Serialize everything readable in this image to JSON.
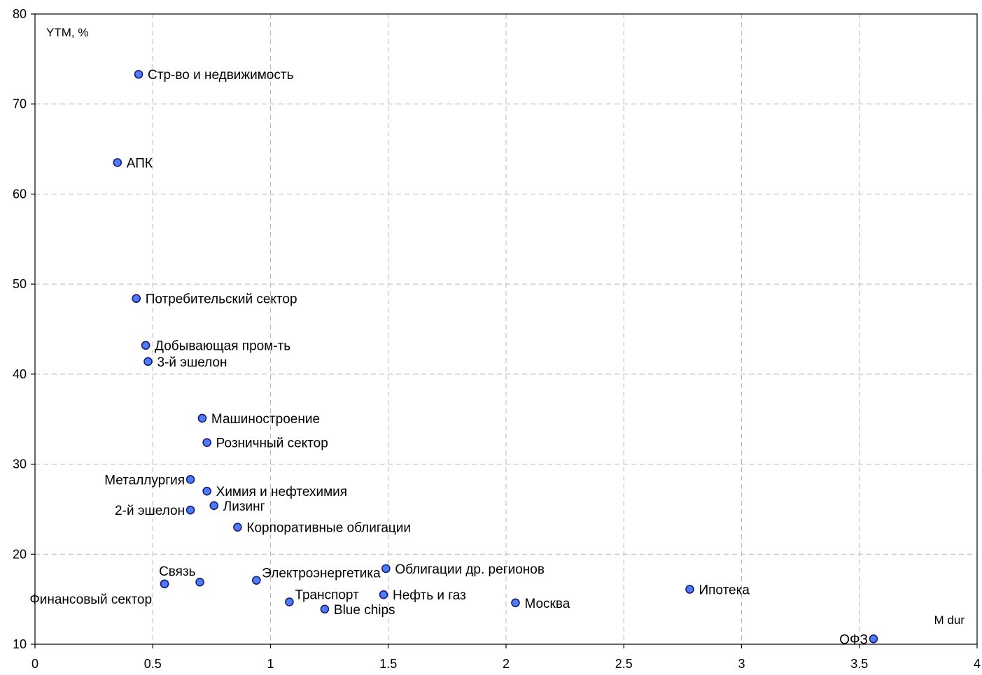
{
  "chart_data": {
    "type": "scatter",
    "title": "",
    "ylabel": "YTM, %",
    "xlabel": "M dur",
    "xlim": [
      0,
      4
    ],
    "ylim": [
      10,
      80
    ],
    "x_ticks": [
      "0",
      "0.5",
      "1",
      "1.5",
      "2",
      "2.5",
      "3",
      "3.5",
      "4"
    ],
    "y_ticks": [
      "10",
      "20",
      "30",
      "40",
      "50",
      "60",
      "70",
      "80"
    ],
    "grid": true,
    "marker_color": "#4d7cff",
    "marker_edge_color": "#1a1a6e",
    "points": [
      {
        "label": "Стр-во и недвижимость",
        "x": 0.44,
        "y": 73.3,
        "label_side": "right"
      },
      {
        "label": "АПК",
        "x": 0.35,
        "y": 63.5,
        "label_side": "right"
      },
      {
        "label": "Потребительский сектор",
        "x": 0.43,
        "y": 48.4,
        "label_side": "right"
      },
      {
        "label": "Добывающая пром-ть",
        "x": 0.47,
        "y": 43.2,
        "label_side": "right"
      },
      {
        "label": "3-й эшелон",
        "x": 0.48,
        "y": 41.4,
        "label_side": "right"
      },
      {
        "label": "Машиностроение",
        "x": 0.71,
        "y": 35.1,
        "label_side": "right"
      },
      {
        "label": "Розничный сектор",
        "x": 0.73,
        "y": 32.4,
        "label_side": "right"
      },
      {
        "label": "Металлургия",
        "x": 0.66,
        "y": 28.3,
        "label_side": "left"
      },
      {
        "label": "Химия и нефтехимия",
        "x": 0.73,
        "y": 27.0,
        "label_side": "right"
      },
      {
        "label": "Лизинг",
        "x": 0.76,
        "y": 25.4,
        "label_side": "right"
      },
      {
        "label": "2-й эшелон",
        "x": 0.66,
        "y": 24.9,
        "label_side": "left"
      },
      {
        "label": "Корпоративные облигации",
        "x": 0.86,
        "y": 23.0,
        "label_side": "right"
      },
      {
        "label": "Облигации др. регионов",
        "x": 1.49,
        "y": 18.4,
        "label_side": "right"
      },
      {
        "label": "Электроэнергетика",
        "x": 0.94,
        "y": 17.1,
        "label_side": "right-up"
      },
      {
        "label": "",
        "x": 0.7,
        "y": 16.9,
        "label_side": "none"
      },
      {
        "label": "Связь",
        "x": 0.55,
        "y": 16.7,
        "label_side": "above"
      },
      {
        "label": "Ипотека",
        "x": 2.78,
        "y": 16.1,
        "label_side": "right"
      },
      {
        "label": "Нефть и газ",
        "x": 1.48,
        "y": 15.5,
        "label_side": "right"
      },
      {
        "label": "Транспорт",
        "x": 1.08,
        "y": 14.7,
        "label_side": "right-up"
      },
      {
        "label": "Москва",
        "x": 2.04,
        "y": 14.6,
        "label_side": "right"
      },
      {
        "label": "Финансовый сектор",
        "x": 0.55,
        "y": 16.7,
        "label_side": "below-left"
      },
      {
        "label": "Blue chips",
        "x": 1.23,
        "y": 13.9,
        "label_side": "right"
      },
      {
        "label": "ОФЗ",
        "x": 3.56,
        "y": 10.6,
        "label_side": "left"
      }
    ]
  }
}
